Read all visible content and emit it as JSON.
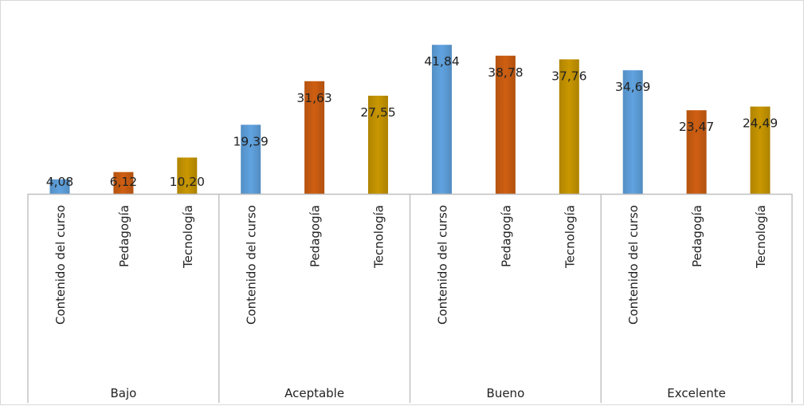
{
  "chart_data": {
    "type": "bar",
    "groups": [
      {
        "label": "Bajo",
        "items": [
          {
            "category": "Contenido del curso",
            "value": 4.08,
            "label": "4,08",
            "color": "#5b9bd5"
          },
          {
            "category": "Pedagogía",
            "value": 6.12,
            "label": "6,12",
            "color": "#c55a11"
          },
          {
            "category": "Tecnología",
            "value": 10.2,
            "label": "10,20",
            "color": "#bf9000"
          }
        ]
      },
      {
        "label": "Aceptable",
        "items": [
          {
            "category": "Contenido del curso",
            "value": 19.39,
            "label": "19,39",
            "color": "#5b9bd5"
          },
          {
            "category": "Pedagogía",
            "value": 31.63,
            "label": "31,63",
            "color": "#c55a11"
          },
          {
            "category": "Tecnología",
            "value": 27.55,
            "label": "27,55",
            "color": "#bf9000"
          }
        ]
      },
      {
        "label": "Bueno",
        "items": [
          {
            "category": "Contenido del curso",
            "value": 41.84,
            "label": "41,84",
            "color": "#5b9bd5"
          },
          {
            "category": "Pedagogía",
            "value": 38.78,
            "label": "38,78",
            "color": "#c55a11"
          },
          {
            "category": "Tecnología",
            "value": 37.76,
            "label": "37,76",
            "color": "#bf9000"
          }
        ]
      },
      {
        "label": "Excelente",
        "items": [
          {
            "category": "Contenido del curso",
            "value": 34.69,
            "label": "34,69",
            "color": "#5b9bd5"
          },
          {
            "category": "Pedagogía",
            "value": 23.47,
            "label": "23,47",
            "color": "#c55a11"
          },
          {
            "category": "Tecnología",
            "value": 24.49,
            "label": "24,49",
            "color": "#bf9000"
          }
        ]
      }
    ],
    "ylim": [
      0,
      43
    ],
    "grid": false,
    "legend": "none",
    "title": "",
    "xlabel": "",
    "ylabel": ""
  }
}
